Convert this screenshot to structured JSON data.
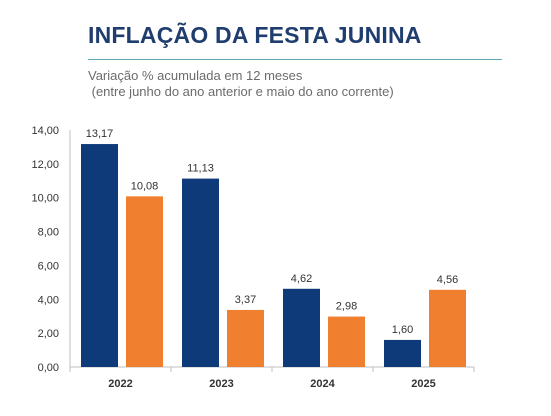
{
  "header": {
    "title": "INFLAÇÃO DA FESTA JUNINA",
    "subtitle_line1": "Variação % acumulada em 12 meses",
    "subtitle_line2": " (entre junho do ano anterior e maio do ano corrente)"
  },
  "colors": {
    "series_1": "#0f3a7a",
    "series_2": "#f07f2f",
    "title": "#1f3d6e",
    "rule": "#5aa7b4"
  },
  "chart_data": {
    "type": "bar",
    "title": "INFLAÇÃO DA FESTA JUNINA",
    "subtitle": "Variação % acumulada em 12 meses (entre junho do ano anterior e maio do ano corrente)",
    "categories": [
      "2022",
      "2023",
      "2024",
      "2025"
    ],
    "series": [
      {
        "values": [
          13.17,
          11.13,
          4.62,
          1.6
        ],
        "labels": [
          "13,17",
          "11,13",
          "4,62",
          "1,60"
        ]
      },
      {
        "values": [
          10.08,
          3.37,
          2.98,
          4.56
        ],
        "labels": [
          "10,08",
          "3,37",
          "2,98",
          "4,56"
        ]
      }
    ],
    "yticks": [
      0,
      2,
      4,
      6,
      8,
      10,
      12,
      14
    ],
    "ytick_labels": [
      "0,00",
      "2,00",
      "4,00",
      "6,00",
      "8,00",
      "10,00",
      "12,00",
      "14,00"
    ],
    "ylim": [
      0,
      14
    ],
    "xlabel": "",
    "ylabel": "",
    "grid": false,
    "legend": "none"
  }
}
